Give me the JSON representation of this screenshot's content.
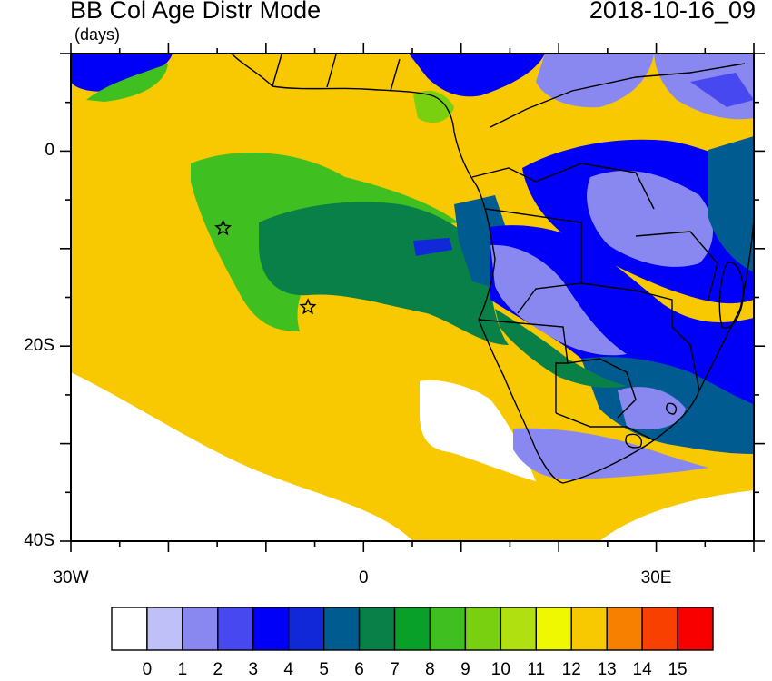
{
  "title_left": "BB Col Age Distr Mode",
  "title_right": "2018-10-16_09",
  "units": "(days)",
  "y_labels": [
    {
      "lat": 0,
      "text": "0"
    },
    {
      "lat": -20,
      "text": "20S"
    },
    {
      "lat": -40,
      "text": "40S"
    }
  ],
  "x_labels": [
    {
      "lon": -30,
      "text": "30W"
    },
    {
      "lon": 0,
      "text": "0"
    },
    {
      "lon": 30,
      "text": "30E"
    }
  ],
  "extent": {
    "lon_min": -30,
    "lon_max": 40,
    "lat_min": -40,
    "lat_max": 10
  },
  "markers": [
    {
      "name": "ascension-island-star-icon",
      "lon": -14.4,
      "lat": -7.9
    },
    {
      "name": "st-helena-star-icon",
      "lon": -5.7,
      "lat": -16.0
    }
  ],
  "colorbar": {
    "labels": [
      "0",
      "1",
      "2",
      "3",
      "4",
      "5",
      "6",
      "7",
      "8",
      "9",
      "10",
      "11",
      "12",
      "13",
      "14",
      "15"
    ],
    "colors": [
      "#ffffff",
      "#c0c0f8",
      "#8888f0",
      "#4848f0",
      "#0000f8",
      "#1028d8",
      "#005c90",
      "#088048",
      "#08a028",
      "#40c020",
      "#78d010",
      "#b0e010",
      "#f0f800",
      "#f8c800",
      "#f88000",
      "#f84000",
      "#f80000"
    ]
  },
  "field_colors": {
    "c0": "#ffffff",
    "c2": "#8888f0",
    "c3": "#4848f0",
    "c4": "#0000f8",
    "c5": "#1028d8",
    "c6": "#005c90",
    "c7": "#088048",
    "c8": "#08a028",
    "c9": "#40c020",
    "c10": "#78d010",
    "c13": "#f8c800"
  }
}
